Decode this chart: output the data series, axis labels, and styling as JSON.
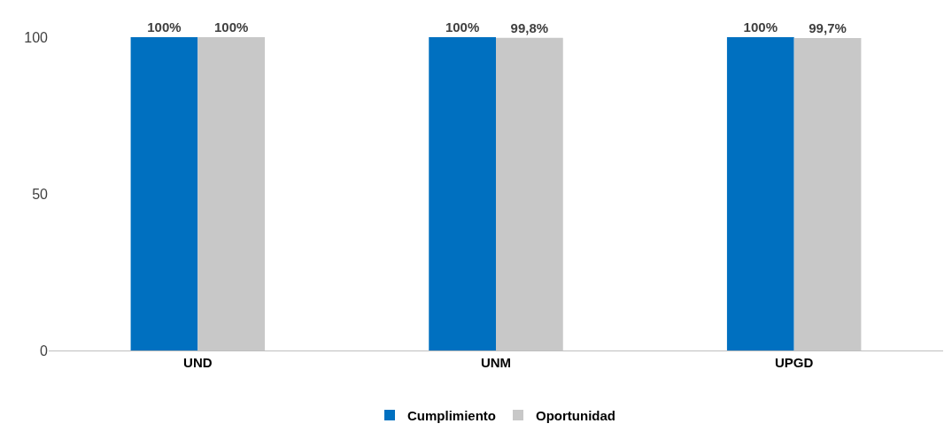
{
  "chart_data": {
    "type": "bar",
    "categories": [
      "UND",
      "UNM",
      "UPGD"
    ],
    "series": [
      {
        "name": "Cumplimiento",
        "color": "#0070c0",
        "values": [
          100,
          100,
          100
        ],
        "value_labels": [
          "100%",
          "100%",
          "100%"
        ]
      },
      {
        "name": "Oportunidad",
        "color": "#c8c8c8",
        "values": [
          100,
          99.8,
          99.7
        ],
        "value_labels": [
          "100%",
          "99,8%",
          "99,7%"
        ]
      }
    ],
    "ylim": [
      0,
      100
    ],
    "yticks": [
      0,
      50,
      100
    ],
    "legend": "bottom"
  }
}
